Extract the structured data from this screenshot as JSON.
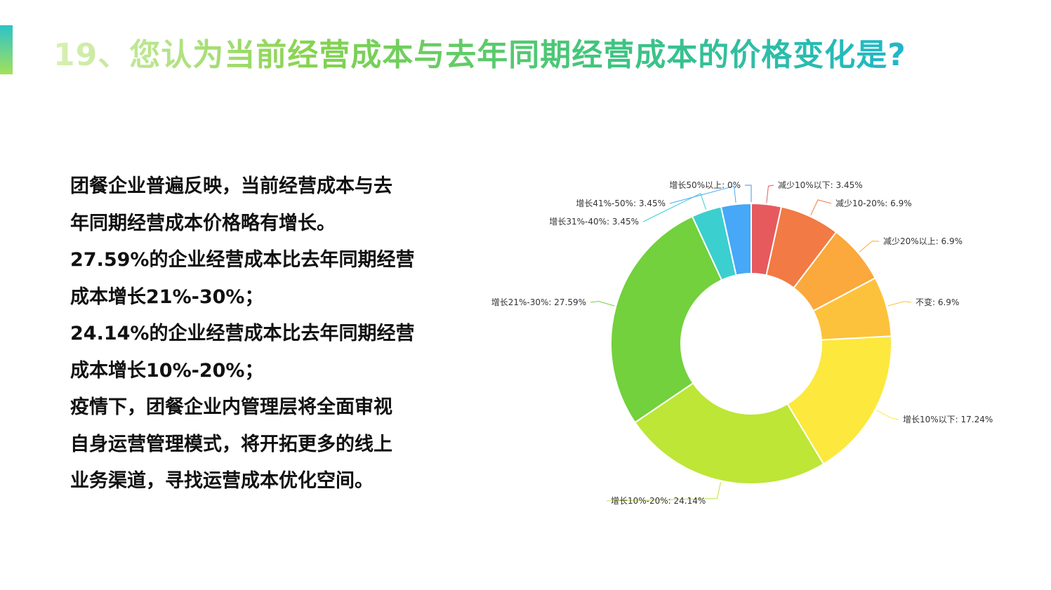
{
  "header": {
    "title": "19、您认为当前经营成本与去年同期经营成本的价格变化是?"
  },
  "summary": {
    "lines": [
      "团餐企业普遍反映，当前经营成本与去",
      "年同期经营成本价格略有增长。",
      "27.59%的企业经营成本比去年同期经营",
      "成本增长21%-30%；",
      "24.14%的企业经营成本比去年同期经营",
      "成本增长10%-20%；",
      "疫情下，团餐企业内管理层将全面审视",
      "自身运营管理模式，将开拓更多的线上",
      "业务渠道，寻找运营成本优化空间。"
    ]
  },
  "chart_data": {
    "type": "pie",
    "variant": "donut",
    "slices": [
      {
        "name": "减少10%以下",
        "value": 3.45,
        "label": "减少10%以下: 3.45%",
        "color": "#e65a5e"
      },
      {
        "name": "减少10-20%",
        "value": 6.9,
        "label": "减少10-20%: 6.9%",
        "color": "#f27a44"
      },
      {
        "name": "减少20%以上",
        "value": 6.9,
        "label": "减少20%以上: 6.9%",
        "color": "#fba83c"
      },
      {
        "name": "不变",
        "value": 6.9,
        "label": "不变: 6.9%",
        "color": "#fdc23c"
      },
      {
        "name": "增长10%以下",
        "value": 17.24,
        "label": "增长10%以下: 17.24%",
        "color": "#fde83e"
      },
      {
        "name": "增长10%-20%",
        "value": 24.14,
        "label": "增长10%-20%: 24.14%",
        "color": "#bde637"
      },
      {
        "name": "增长21%-30%",
        "value": 27.59,
        "label": "增长21%-30%: 27.59%",
        "color": "#72d13c"
      },
      {
        "name": "增长31%-40%",
        "value": 3.45,
        "label": "增长31%-40%: 3.45%",
        "color": "#3ccfcf"
      },
      {
        "name": "增长41%-50%",
        "value": 3.45,
        "label": "增长41%-50%: 3.45%",
        "color": "#46a8f6"
      },
      {
        "name": "增长50%以上",
        "value": 0,
        "label": "增长50%以上: 0%",
        "color": "#4a90e2"
      }
    ]
  }
}
